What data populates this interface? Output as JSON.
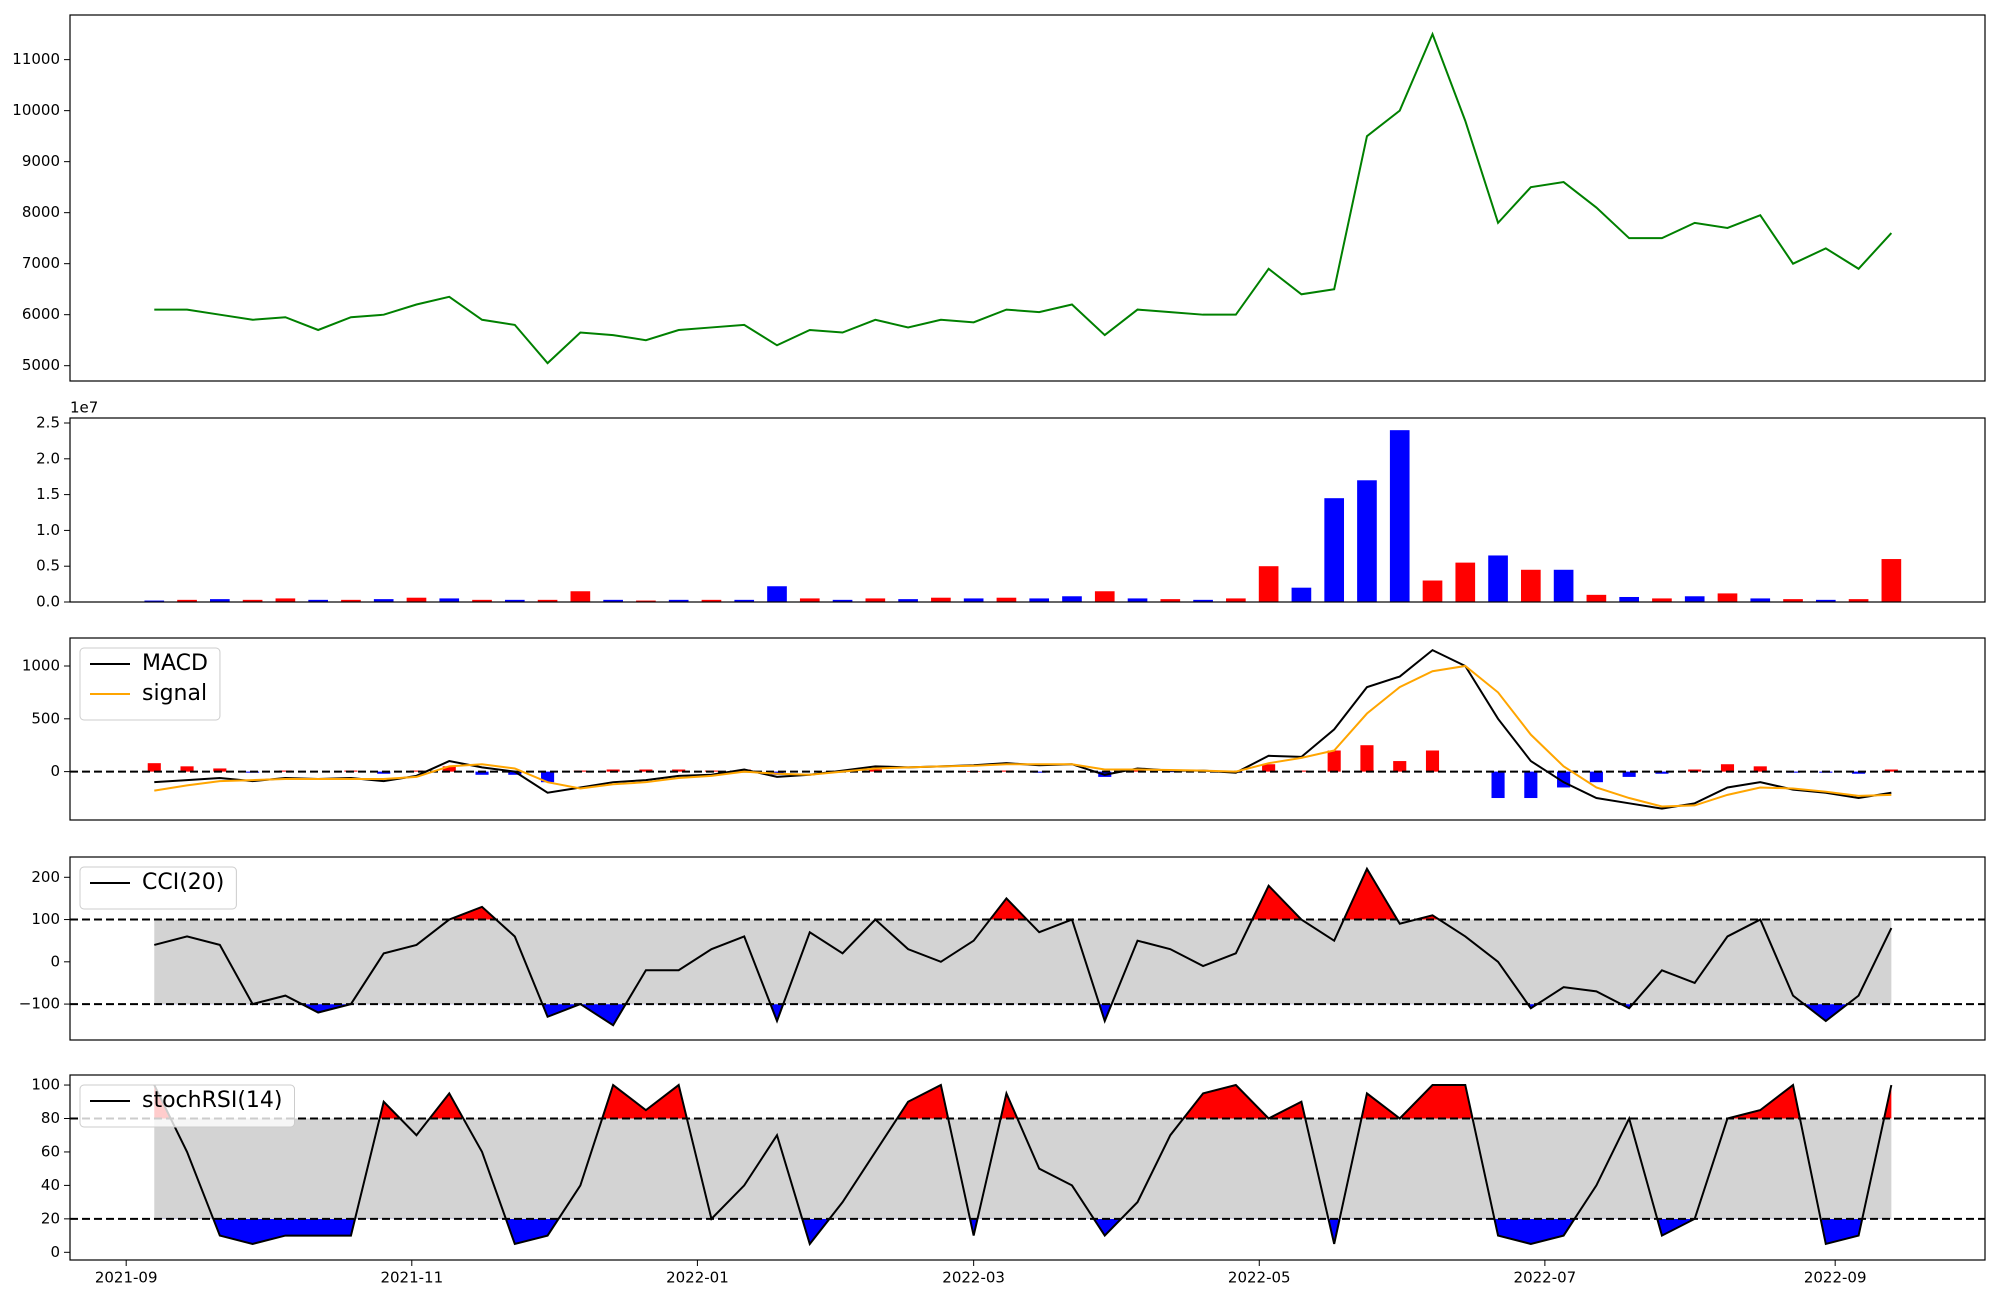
{
  "chart_data": [
    {
      "type": "line",
      "xlim": [
        -12,
        397
      ],
      "x": [
        6,
        13,
        20,
        27,
        34,
        41,
        48,
        55,
        62,
        69,
        76,
        83,
        90,
        97,
        104,
        111,
        118,
        125,
        132,
        139,
        146,
        153,
        160,
        167,
        174,
        181,
        188,
        195,
        202,
        209,
        216,
        223,
        230,
        237,
        244,
        251,
        258,
        265,
        272,
        279,
        286,
        293,
        300,
        307,
        314,
        321,
        328,
        335,
        342,
        349,
        356,
        363,
        370,
        377
      ],
      "ylim": [
        4700,
        11875
      ],
      "yticks": [
        5000,
        6000,
        7000,
        8000,
        9000,
        10000,
        11000
      ],
      "series": [
        {
          "color": "green",
          "values": [
            6100,
            6100,
            6000,
            5900,
            5950,
            5700,
            5950,
            6000,
            6200,
            6350,
            5900,
            5800,
            5050,
            5650,
            5600,
            5500,
            5700,
            5750,
            5800,
            5400,
            5700,
            5650,
            5900,
            5750,
            5900,
            5850,
            6100,
            6050,
            6200,
            5600,
            6100,
            6050,
            6000,
            6000,
            6900,
            6400,
            6500,
            9500,
            10000,
            11500,
            9800,
            7800,
            8500,
            8600,
            8100,
            7500,
            7500,
            7800,
            7700,
            7950,
            7000,
            7300,
            6900,
            7600
          ]
        }
      ]
    },
    {
      "type": "bar",
      "xlim": [
        -12,
        397
      ],
      "x": [
        6,
        13,
        20,
        27,
        34,
        41,
        48,
        55,
        62,
        69,
        76,
        83,
        90,
        97,
        104,
        111,
        118,
        125,
        132,
        139,
        146,
        153,
        160,
        167,
        174,
        181,
        188,
        195,
        202,
        209,
        216,
        223,
        230,
        237,
        244,
        251,
        258,
        265,
        272,
        279,
        286,
        293,
        300,
        307,
        314,
        321,
        328,
        335,
        342,
        349,
        356,
        363,
        370,
        377
      ],
      "ylim": [
        0,
        2.57
      ],
      "offset_label": "1e7",
      "yticks": [
        {
          "value": 0,
          "label": "0.0"
        },
        0.5,
        {
          "value": 1,
          "label": "1.0"
        },
        1.5,
        {
          "value": 2,
          "label": "2.0"
        },
        2.5
      ],
      "values": [
        0.02,
        0.03,
        0.04,
        0.03,
        0.05,
        0.03,
        0.03,
        0.04,
        0.06,
        0.05,
        0.03,
        0.03,
        0.03,
        0.15,
        0.03,
        0.02,
        0.03,
        0.03,
        0.03,
        0.22,
        0.05,
        0.03,
        0.05,
        0.04,
        0.06,
        0.05,
        0.06,
        0.05,
        0.08,
        0.15,
        0.05,
        0.04,
        0.03,
        0.05,
        0.5,
        0.2,
        1.45,
        1.7,
        2.4,
        0.3,
        0.55,
        0.65,
        0.45,
        0.45,
        0.1,
        0.07,
        0.05,
        0.08,
        0.12,
        0.05,
        0.04,
        0.03,
        0.04,
        0.6
      ],
      "colors": [
        "blue",
        "red",
        "blue",
        "red",
        "red",
        "blue",
        "red",
        "blue",
        "red",
        "blue",
        "red",
        "blue",
        "red",
        "red",
        "blue",
        "red",
        "blue",
        "red",
        "blue",
        "blue",
        "red",
        "blue",
        "red",
        "blue",
        "red",
        "blue",
        "red",
        "blue",
        "blue",
        "red",
        "blue",
        "red",
        "blue",
        "red",
        "red",
        "blue",
        "blue",
        "blue",
        "blue",
        "red",
        "red",
        "blue",
        "red",
        "blue",
        "red",
        "blue",
        "red",
        "blue",
        "red",
        "blue",
        "red",
        "blue",
        "red",
        "red"
      ]
    },
    {
      "type": "line",
      "xlim": [
        -12,
        397
      ],
      "x": [
        6,
        13,
        20,
        27,
        34,
        41,
        48,
        55,
        62,
        69,
        76,
        83,
        90,
        97,
        104,
        111,
        118,
        125,
        132,
        139,
        146,
        153,
        160,
        167,
        174,
        181,
        188,
        195,
        202,
        209,
        216,
        223,
        230,
        237,
        244,
        251,
        258,
        265,
        272,
        279,
        286,
        293,
        300,
        307,
        314,
        321,
        328,
        335,
        342,
        349,
        356,
        363,
        370,
        377
      ],
      "ylim": [
        -458,
        1265
      ],
      "yticks": [
        0,
        500,
        1000
      ],
      "hlines": [
        0
      ],
      "series": [
        {
          "type": "bar",
          "colors": {
            "up": "red",
            "down": "blue"
          },
          "values": [
            80,
            50,
            30,
            -10,
            10,
            0,
            10,
            -20,
            10,
            50,
            -30,
            -30,
            -100,
            10,
            20,
            20,
            20,
            10,
            20,
            -30,
            0,
            10,
            20,
            0,
            0,
            5,
            10,
            -10,
            0,
            -50,
            10,
            -5,
            0,
            -10,
            70,
            10,
            200,
            250,
            100,
            200,
            0,
            -250,
            -250,
            -150,
            -100,
            -50,
            -20,
            20,
            70,
            50,
            -10,
            -10,
            -20,
            20
          ]
        },
        {
          "type": "line",
          "name": "MACD",
          "color": "black",
          "values": [
            -100,
            -80,
            -60,
            -90,
            -60,
            -70,
            -60,
            -90,
            -40,
            100,
            40,
            0,
            -200,
            -150,
            -100,
            -80,
            -40,
            -30,
            20,
            -50,
            -30,
            10,
            50,
            40,
            50,
            60,
            80,
            60,
            70,
            -30,
            30,
            10,
            10,
            -10,
            150,
            140,
            400,
            800,
            900,
            1150,
            1000,
            500,
            100,
            -100,
            -250,
            -300,
            -350,
            -300,
            -150,
            -100,
            -170,
            -200,
            -250,
            -200
          ]
        },
        {
          "type": "line",
          "name": "signal",
          "color": "orange",
          "values": [
            -180,
            -130,
            -90,
            -80,
            -70,
            -70,
            -70,
            -70,
            -50,
            50,
            70,
            30,
            -100,
            -160,
            -120,
            -100,
            -60,
            -40,
            0,
            -20,
            -30,
            0,
            30,
            40,
            50,
            55,
            70,
            70,
            70,
            20,
            20,
            15,
            10,
            0,
            80,
            130,
            200,
            550,
            800,
            950,
            1000,
            750,
            350,
            50,
            -150,
            -250,
            -330,
            -320,
            -220,
            -150,
            -160,
            -190,
            -230,
            -220
          ]
        }
      ]
    },
    {
      "type": "line",
      "xlim": [
        -12,
        397
      ],
      "x": [
        6,
        13,
        20,
        27,
        34,
        41,
        48,
        55,
        62,
        69,
        76,
        83,
        90,
        97,
        104,
        111,
        118,
        125,
        132,
        139,
        146,
        153,
        160,
        167,
        174,
        181,
        188,
        195,
        202,
        209,
        216,
        223,
        230,
        237,
        244,
        251,
        258,
        265,
        272,
        279,
        286,
        293,
        300,
        307,
        314,
        321,
        328,
        335,
        342,
        349,
        356,
        363,
        370,
        377
      ],
      "ylim": [
        -185,
        248
      ],
      "yticks": [
        {
          "value": -100,
          "label": "−100"
        },
        0,
        100,
        200
      ],
      "band": {
        "range": [
          -100,
          100
        ],
        "color": "lightgray",
        "above_color": "red",
        "below_color": "blue"
      },
      "series": [
        {
          "type": "line",
          "name": "CCI(20)",
          "color": "black",
          "values": [
            40,
            60,
            40,
            -100,
            -80,
            -120,
            -100,
            20,
            40,
            100,
            130,
            60,
            -130,
            -100,
            -150,
            -20,
            -20,
            30,
            60,
            -140,
            70,
            20,
            100,
            30,
            0,
            50,
            150,
            70,
            100,
            -140,
            50,
            30,
            -10,
            20,
            180,
            100,
            50,
            220,
            90,
            110,
            60,
            0,
            -110,
            -60,
            -70,
            -110,
            -20,
            -50,
            60,
            100,
            -80,
            -140,
            -80,
            80
          ]
        }
      ]
    },
    {
      "type": "line",
      "xlim": [
        -12,
        397
      ],
      "x": [
        6,
        13,
        20,
        27,
        34,
        41,
        48,
        55,
        62,
        69,
        76,
        83,
        90,
        97,
        104,
        111,
        118,
        125,
        132,
        139,
        146,
        153,
        160,
        167,
        174,
        181,
        188,
        195,
        202,
        209,
        216,
        223,
        230,
        237,
        244,
        251,
        258,
        265,
        272,
        279,
        286,
        293,
        300,
        307,
        314,
        321,
        328,
        335,
        342,
        349,
        356,
        363,
        370,
        377
      ],
      "ylim": [
        -4.6,
        106
      ],
      "yticks": [
        0,
        20,
        40,
        60,
        80,
        100
      ],
      "band": {
        "range": [
          20,
          80
        ],
        "color": "lightgray",
        "above_color": "red",
        "below_color": "blue"
      },
      "xticks": [
        {
          "value": 0,
          "label": "2021-09"
        },
        {
          "value": 61,
          "label": "2021-11"
        },
        {
          "value": 122,
          "label": "2022-01"
        },
        {
          "value": 181,
          "label": "2022-03"
        },
        {
          "value": 242,
          "label": "2022-05"
        },
        {
          "value": 303,
          "label": "2022-07"
        },
        {
          "value": 365,
          "label": "2022-09"
        }
      ],
      "series": [
        {
          "type": "line",
          "name": "stochRSI(14)",
          "color": "black",
          "values": [
            100,
            60,
            10,
            5,
            10,
            10,
            10,
            90,
            70,
            95,
            60,
            5,
            10,
            40,
            100,
            85,
            100,
            20,
            40,
            70,
            5,
            30,
            60,
            90,
            100,
            10,
            95,
            50,
            40,
            10,
            30,
            70,
            95,
            100,
            80,
            90,
            5,
            95,
            80,
            100,
            100,
            10,
            5,
            10,
            40,
            80,
            10,
            20,
            80,
            85,
            100,
            5,
            10,
            100
          ]
        }
      ]
    }
  ]
}
